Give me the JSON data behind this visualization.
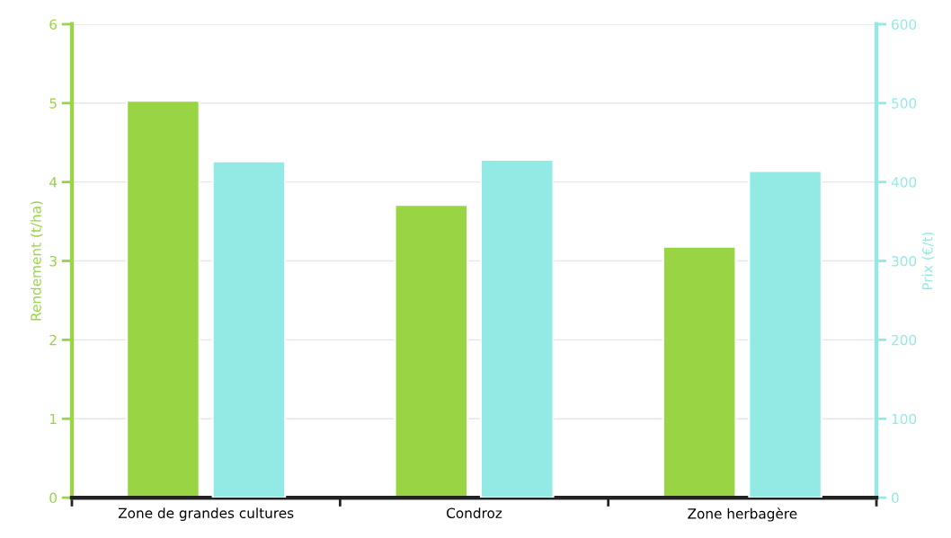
{
  "chart_data": {
    "type": "bar",
    "categories": [
      "Zone de grandes cultures",
      "Condroz",
      "Zone herbagère"
    ],
    "ylabel": "Rendement (t/ha)",
    "y2label": "Prix (€/t)",
    "ylim": [
      0,
      6
    ],
    "yticks": [
      0,
      1,
      2,
      3,
      4,
      5,
      6
    ],
    "y2lim": [
      0,
      600
    ],
    "y2ticks": [
      0,
      100,
      200,
      300,
      400,
      500,
      600
    ],
    "grid": "y",
    "series": [
      {
        "color": "#99d444",
        "values": [
          5.03,
          3.71,
          3.18
        ]
      },
      {
        "color": "#93e9e4",
        "axis": "y2",
        "values": [
          426,
          428,
          414
        ]
      }
    ]
  }
}
